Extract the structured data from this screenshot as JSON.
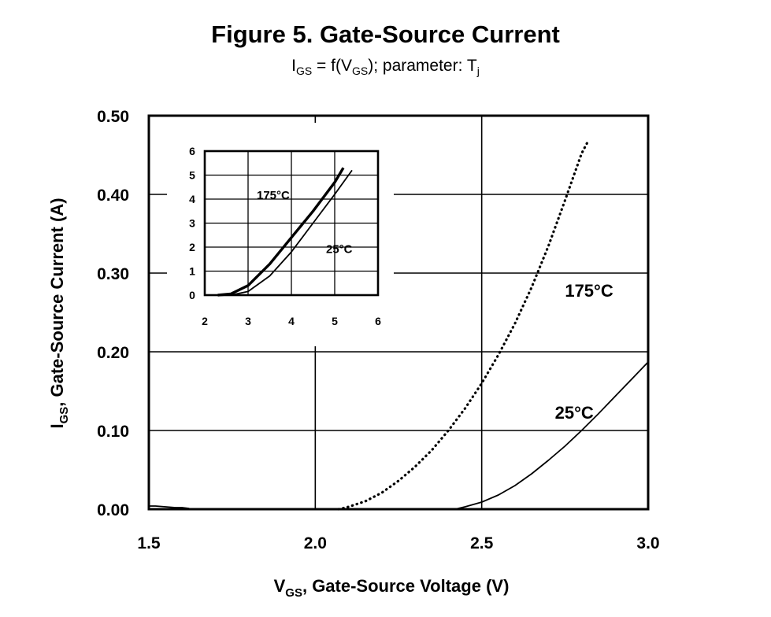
{
  "figure": {
    "title": "Figure 5.  Gate-Source Current",
    "subtitle_prefix": "I",
    "subtitle_sub1": "GS",
    "subtitle_mid": " = f(V",
    "subtitle_sub2": "GS",
    "subtitle_suffix": "); parameter: T",
    "subtitle_sub3": "j"
  },
  "chart_data": [
    {
      "type": "line",
      "role": "main",
      "xlabel_main": "V",
      "xlabel_sub": "GS",
      "xlabel_rest": ", Gate-Source Voltage (V)",
      "ylabel_main": "I",
      "ylabel_sub": "GS",
      "ylabel_rest": ", Gate-Source Current (A)",
      "xlim": [
        1.5,
        3.0
      ],
      "ylim": [
        0.0,
        0.5
      ],
      "x_ticks": [
        1.5,
        2.0,
        2.5,
        3.0
      ],
      "x_tick_labels": [
        "1.5",
        "2.0",
        "2.5",
        "3.0"
      ],
      "y_ticks": [
        0.0,
        0.1,
        0.2,
        0.3,
        0.4,
        0.5
      ],
      "y_tick_labels": [
        "0.00",
        "0.10",
        "0.20",
        "0.30",
        "0.40",
        "0.50"
      ],
      "grid": true,
      "series": [
        {
          "name": "175°C",
          "style": "dotted",
          "color": "#000000",
          "x": [
            2.07,
            2.1,
            2.15,
            2.2,
            2.25,
            2.3,
            2.35,
            2.4,
            2.45,
            2.5,
            2.55,
            2.6,
            2.65,
            2.7,
            2.75,
            2.8,
            2.82
          ],
          "y": [
            0.0,
            0.003,
            0.01,
            0.021,
            0.036,
            0.054,
            0.075,
            0.1,
            0.128,
            0.16,
            0.196,
            0.236,
            0.282,
            0.334,
            0.392,
            0.452,
            0.468
          ]
        },
        {
          "name": "25°C",
          "style": "solid",
          "color": "#000000",
          "x": [
            2.42,
            2.45,
            2.5,
            2.55,
            2.6,
            2.65,
            2.7,
            2.75,
            2.8,
            2.85,
            2.9,
            2.95,
            3.0
          ],
          "y": [
            0.0,
            0.003,
            0.009,
            0.018,
            0.03,
            0.045,
            0.062,
            0.08,
            0.1,
            0.121,
            0.143,
            0.165,
            0.187
          ]
        },
        {
          "name": "",
          "style": "solid",
          "color": "#000000",
          "x": [
            1.5,
            1.52,
            1.55,
            1.58,
            1.6,
            1.62
          ],
          "y": [
            0.004,
            0.004,
            0.003,
            0.002,
            0.002,
            0.001
          ]
        }
      ],
      "labels": [
        {
          "text": "175°C",
          "x": 2.75,
          "y": 0.27
        },
        {
          "text": "25°C",
          "x": 2.72,
          "y": 0.115
        }
      ]
    },
    {
      "type": "line",
      "role": "inset",
      "xlim": [
        2,
        6
      ],
      "ylim": [
        0,
        6
      ],
      "x_ticks": [
        2,
        3,
        4,
        5,
        6
      ],
      "x_tick_labels": [
        "2",
        "3",
        "4",
        "5",
        "6"
      ],
      "y_ticks": [
        0,
        1,
        2,
        3,
        4,
        5,
        6
      ],
      "y_tick_labels": [
        "0",
        "1",
        "2",
        "3",
        "4",
        "5",
        "6"
      ],
      "grid": true,
      "series": [
        {
          "name": "175°C",
          "style": "solid-bold",
          "color": "#000000",
          "x": [
            2.3,
            2.6,
            3.0,
            3.5,
            4.0,
            4.5,
            5.0,
            5.2
          ],
          "y": [
            0.0,
            0.05,
            0.4,
            1.3,
            2.4,
            3.5,
            4.7,
            5.3
          ]
        },
        {
          "name": "25°C",
          "style": "solid",
          "color": "#000000",
          "x": [
            2.6,
            3.0,
            3.5,
            4.0,
            4.5,
            5.0,
            5.4
          ],
          "y": [
            0.0,
            0.15,
            0.8,
            1.8,
            3.0,
            4.2,
            5.2
          ]
        }
      ],
      "labels": [
        {
          "text": "175°C",
          "x": 3.2,
          "y": 4.0
        },
        {
          "text": "25°C",
          "x": 4.8,
          "y": 1.75
        }
      ]
    }
  ]
}
